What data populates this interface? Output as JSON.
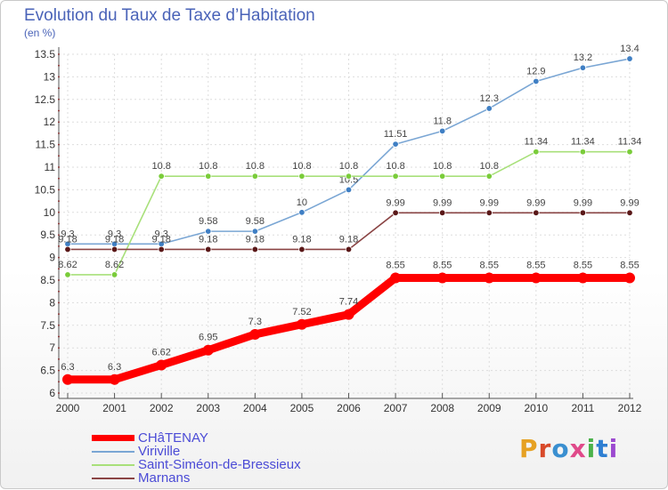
{
  "header": {
    "title": "Evolution du Taux de Taxe d’Habitation",
    "subtitle": "(en %)"
  },
  "logo_text": "Proxiti",
  "colors": {
    "title": "#4a63b8",
    "legend_text": "#4b4bd6",
    "axis": "#555555",
    "grid": "#dddddd"
  },
  "chart_data": {
    "type": "line",
    "x": [
      2000,
      2001,
      2002,
      2003,
      2004,
      2005,
      2006,
      2007,
      2008,
      2009,
      2010,
      2011,
      2012
    ],
    "ylim": [
      6,
      13.5
    ],
    "yticks": [
      "6",
      "6.5",
      "7",
      "7.5",
      "8",
      "8.5",
      "9",
      "9.5",
      "10",
      "10.5",
      "11",
      "11.5",
      "12",
      "12.5",
      "13",
      "13.5"
    ],
    "title": "Evolution du Taux de Taxe d’Habitation",
    "ylabel": "(en %)",
    "grid": true,
    "legend_position": "bottom-left",
    "series": [
      {
        "name": "CHâTENAY",
        "color": "#ff0000",
        "values": [
          6.3,
          6.3,
          6.62,
          6.95,
          7.3,
          7.52,
          7.74,
          8.55,
          8.55,
          8.55,
          8.55,
          8.55,
          8.55
        ],
        "labels": [
          "6.3",
          "6.3",
          "6.62",
          "6.95",
          "7.3",
          "7.52",
          "7.74",
          "8.55",
          "8.55",
          "8.55",
          "8.55",
          "8.55",
          "8.55"
        ]
      },
      {
        "name": "Viriville",
        "color": "#7aa6d4",
        "marker": "#3f7fc4",
        "values": [
          9.3,
          9.3,
          9.3,
          9.58,
          9.58,
          10,
          10.5,
          11.51,
          11.8,
          12.3,
          12.9,
          13.2,
          13.4
        ],
        "labels": [
          "9.3",
          "9.3",
          "9.3",
          "9.58",
          "9.58",
          "10",
          "10.5",
          "11.51",
          "11.8",
          "12.3",
          "12.9",
          "13.2",
          "13.4"
        ]
      },
      {
        "name": "Saint-Siméon-de-Bressieux",
        "color": "#a8e07a",
        "marker": "#7acc3a",
        "values": [
          8.62,
          8.62,
          10.8,
          10.8,
          10.8,
          10.8,
          10.8,
          10.8,
          10.8,
          10.8,
          11.34,
          11.34,
          11.34
        ],
        "labels": [
          "8.62",
          "8.62",
          "10.8",
          "10.8",
          "10.8",
          "10.8",
          "10.8",
          "10.8",
          "10.8",
          "10.8",
          "11.34",
          "11.34",
          "11.34"
        ]
      },
      {
        "name": "Marnans",
        "color": "#8a4444",
        "marker": "#5a1818",
        "values": [
          9.18,
          9.18,
          9.18,
          9.18,
          9.18,
          9.18,
          9.18,
          9.99,
          9.99,
          9.99,
          9.99,
          9.99,
          9.99
        ],
        "labels": [
          "9.18",
          "9.18",
          "9.18",
          "9.18",
          "9.18",
          "9.18",
          "9.18",
          "9.99",
          "9.99",
          "9.99",
          "9.99",
          "9.99",
          "9.99"
        ]
      }
    ]
  }
}
